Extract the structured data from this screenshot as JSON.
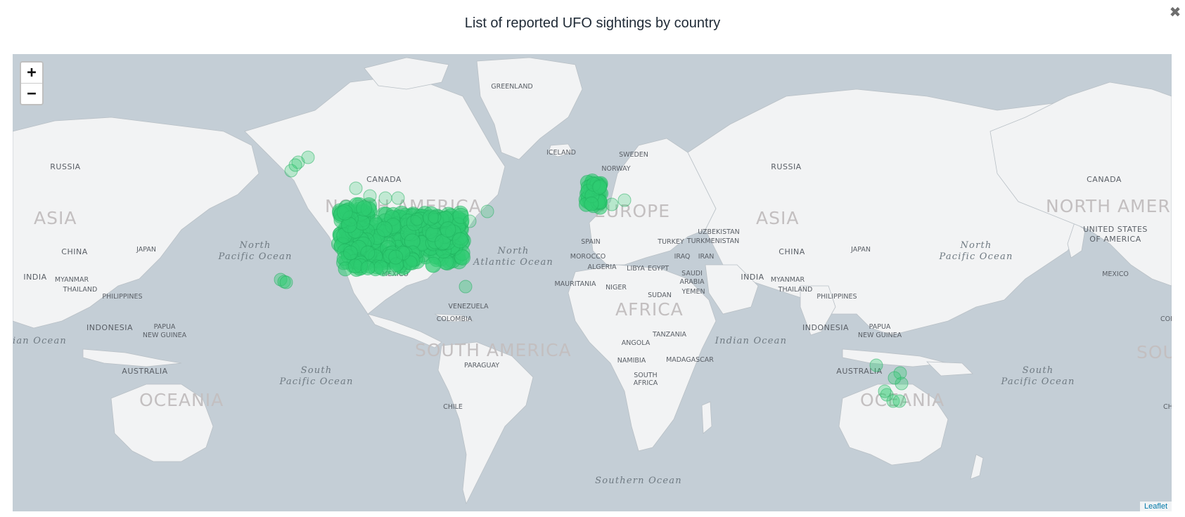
{
  "dialog": {
    "title": "List of reported UFO sightings by country",
    "close_glyph": "✖"
  },
  "map": {
    "zoom_in": "+",
    "zoom_out": "−",
    "attribution": "Leaflet",
    "colors": {
      "ocean": "#c4ced6",
      "land": "#f2f3f4",
      "marker": "#2ecc71",
      "marker_stroke": "#1eae5b"
    },
    "continent_labels": [
      "ASIA",
      "NORTH AMERICA",
      "EUROPE",
      "AFRICA",
      "SOUTH AMERICA",
      "OCEANIA",
      "ASIA",
      "OCEANIA",
      "NORTH AMERI",
      "SOU"
    ],
    "ocean_labels": [
      [
        "North",
        "Pacific Ocean"
      ],
      [
        "North",
        "Atlantic Ocean"
      ],
      [
        "South",
        "Pacific Ocean"
      ],
      [
        "Indian Ocean"
      ],
      [
        "ian Ocean"
      ],
      [
        "South",
        "Pacific Ocean"
      ],
      [
        "North",
        "Pacific Ocean"
      ],
      [
        "Southern Ocean"
      ]
    ],
    "country_labels": [
      "GREENLAND",
      "RUSSIA",
      "CANADA",
      "ICELAND",
      "SWEDEN",
      "NORWAY",
      "RUSSIA",
      "CANADA",
      "CHINA",
      "JAPAN",
      "INDIA",
      "MYANMAR",
      "THAILAND",
      "PHILIPPINES",
      "INDONESIA",
      "PAPUA",
      "NEW GUINEA",
      "AUSTRALIA",
      "MEXICO",
      "VENEZUELA",
      "COLOMBIA",
      "PARAGUAY",
      "CHILE",
      "SPAIN",
      "MOROCCO",
      "ALGERIA",
      "LIBYA",
      "EGYPT",
      "MAURITANIA",
      "NIGER",
      "SUDAN",
      "ANGOLA",
      "TANZANIA",
      "NAMIBIA",
      "MADAGASCAR",
      "SOUTH",
      "AFRICA",
      "SAUDI",
      "ARABIA",
      "YEMEN",
      "IRAQ",
      "IRAN",
      "TURKEY",
      "UZBEKISTAN",
      "TURKMENISTAN",
      "CHINA",
      "JAPAN",
      "INDIA",
      "MYANMAR",
      "THAILAND",
      "PHILIPPINES",
      "INDONESIA",
      "PAPUA",
      "NEW GUINEA",
      "AUSTRALIA",
      "UNITED STATES",
      "OF AMERICA",
      "MEXICO",
      "COLO",
      "CHI"
    ]
  }
}
